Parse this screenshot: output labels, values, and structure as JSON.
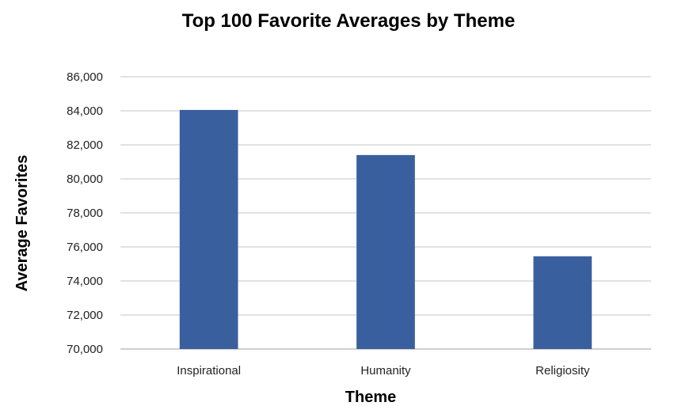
{
  "chart_data": {
    "type": "bar",
    "title": "Top 100 Favorite Averages by Theme",
    "xlabel": "Theme",
    "ylabel": "Average Favorites",
    "categories": [
      "Inspirational",
      "Humanity",
      "Religiosity"
    ],
    "values": [
      84050,
      81400,
      75450
    ],
    "ylim": [
      70000,
      86000
    ],
    "yticks": [
      70000,
      72000,
      74000,
      76000,
      78000,
      80000,
      82000,
      84000,
      86000
    ],
    "ytick_labels": [
      "70,000",
      "72,000",
      "74,000",
      "76,000",
      "78,000",
      "80,000",
      "82,000",
      "84,000",
      "86,000"
    ],
    "grid": true,
    "legend": "none",
    "bar_color": "#3a5f9e"
  }
}
